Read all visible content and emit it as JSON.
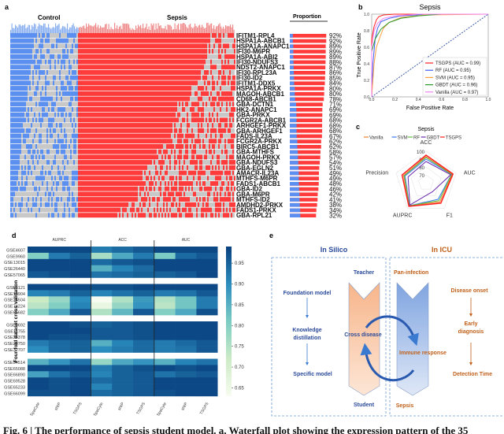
{
  "panel_labels": {
    "a": "a",
    "b": "b",
    "c": "c",
    "d": "d",
    "e": "e"
  },
  "panel_a": {
    "group_labels": {
      "control": "Control",
      "sepsis": "Sepsis"
    },
    "proportion_header": "Proportion",
    "colors": {
      "control": "#5b8ff0",
      "sepsis": "#ff3b3b",
      "absent": "#c8c8c8"
    },
    "genes": [
      "IFITM1-RPL4",
      "HSPA1A-ABCB1",
      "HSPA1A-ANAPC1",
      "IFI30-M6PR",
      "HSPA1A-ABI2",
      "IFI30-NDUFS3",
      "NDST2-ANAPC1",
      "IFI30-RPL23A",
      "IFI30-ID2",
      "IFITM1-DDX5",
      "HSPA1A-PRKX",
      "MAGOH-ABCB1",
      "CD68-ABCB1",
      "GBA-DCTN1",
      "HK2-ANAPC1",
      "GBA-PRKX",
      "FCGR2A-ABCB1",
      "ARHGEF1-PRKX",
      "GBA-ARHGEF1",
      "FADS-IL23A",
      "FCGR2A-PRKX",
      "BIRC5-ABCB1",
      "GBA-MTHFS",
      "MAGOH-PRKX",
      "GBA-NDUFS3",
      "GBA-EGLN2",
      "AMACR-IL23A",
      "MTHFS-M6PR",
      "FADS1-ABCB1",
      "GBA-ID2",
      "GBA-M6PR",
      "MTHFS-ID2",
      "AMDHD2-PRKX",
      "FADS1-PRKX",
      "GBA-RPL21"
    ],
    "proportions": [
      92,
      92,
      89,
      89,
      89,
      88,
      87,
      86,
      85,
      84,
      80,
      80,
      78,
      71,
      69,
      69,
      68,
      68,
      68,
      67,
      62,
      62,
      58,
      57,
      54,
      51,
      49,
      49,
      48,
      46,
      42,
      41,
      38,
      34,
      32
    ]
  },
  "chart_data": [
    {
      "panel": "b",
      "type": "line",
      "title": "Sepsis",
      "xlabel": "False Positive Rate",
      "ylabel": "True Positive Rate",
      "xlim": [
        0,
        1
      ],
      "ylim": [
        0,
        1
      ],
      "xticks": [
        "0.0",
        "0.2",
        "0.4",
        "0.6",
        "0.8",
        "1.0"
      ],
      "yticks": [
        "0.0",
        "0.2",
        "0.4",
        "0.6",
        "0.8",
        "1.0"
      ],
      "legend_position": "bottom-right",
      "series": [
        {
          "name": "TSGPS (AUC = 0.99)",
          "color": "#ff2020",
          "points": [
            [
              0,
              0
            ],
            [
              0,
              0.7
            ],
            [
              0.02,
              0.85
            ],
            [
              0.04,
              0.93
            ],
            [
              0.06,
              0.97
            ],
            [
              0.1,
              0.99
            ],
            [
              0.2,
              1
            ],
            [
              1,
              1
            ]
          ]
        },
        {
          "name": "RF (AUC = 0.95)",
          "color": "#3a5cf0",
          "points": [
            [
              0,
              0
            ],
            [
              0.01,
              0.4
            ],
            [
              0.03,
              0.7
            ],
            [
              0.05,
              0.83
            ],
            [
              0.08,
              0.91
            ],
            [
              0.15,
              0.95
            ],
            [
              0.25,
              0.98
            ],
            [
              0.5,
              1
            ],
            [
              1,
              1
            ]
          ]
        },
        {
          "name": "SVM (AUC = 0.95)",
          "color": "#ffa040",
          "points": [
            [
              0,
              0
            ],
            [
              0.02,
              0.4
            ],
            [
              0.04,
              0.6
            ],
            [
              0.07,
              0.72
            ],
            [
              0.1,
              0.83
            ],
            [
              0.15,
              0.9
            ],
            [
              0.25,
              0.96
            ],
            [
              0.45,
              0.99
            ],
            [
              1,
              1
            ]
          ]
        },
        {
          "name": "GBDT (AUC = 0.96)",
          "color": "#2a9a2a",
          "points": [
            [
              0,
              0
            ],
            [
              0,
              0.55
            ],
            [
              0.03,
              0.7
            ],
            [
              0.08,
              0.82
            ],
            [
              0.15,
              0.9
            ],
            [
              0.25,
              0.95
            ],
            [
              0.4,
              0.98
            ],
            [
              0.6,
              1
            ],
            [
              1,
              1
            ]
          ]
        },
        {
          "name": "Vanilla (AUC = 0.97)",
          "color": "#f080f0",
          "points": [
            [
              0,
              0
            ],
            [
              0,
              0.6
            ],
            [
              0.02,
              0.8
            ],
            [
              0.05,
              0.89
            ],
            [
              0.1,
              0.95
            ],
            [
              0.2,
              0.98
            ],
            [
              0.4,
              1
            ],
            [
              1,
              1
            ]
          ]
        }
      ],
      "diagonal_color": "#2a4aa0"
    },
    {
      "panel": "c",
      "type": "radar",
      "title": "Sepsis",
      "axes": [
        "ACC",
        "AUC",
        "F1",
        "AUPRC",
        "Precision"
      ],
      "ring_labels": [
        "100",
        "90",
        "80",
        "70"
      ],
      "range": [
        60,
        100
      ],
      "legend_position": "top",
      "series": [
        {
          "name": "Vanilla",
          "color": "#f08030",
          "values": [
            93,
            95,
            90,
            96,
            90
          ]
        },
        {
          "name": "SVM",
          "color": "#3a7af0",
          "values": [
            90,
            94,
            86,
            96,
            88
          ]
        },
        {
          "name": "RF",
          "color": "#60c040",
          "values": [
            92,
            94,
            88,
            96,
            89
          ]
        },
        {
          "name": "GBDT",
          "color": "#6a2ab0",
          "values": [
            87,
            93,
            74,
            95,
            84
          ]
        },
        {
          "name": "TSGPS",
          "color": "#ff2020",
          "values": [
            95,
            96,
            92,
            97,
            92
          ]
        }
      ]
    },
    {
      "panel": "d",
      "type": "heatmap",
      "ylabel": "Four-fold dataset cross validation",
      "metric_groups": [
        "AUPRC",
        "ACC",
        "AUC"
      ],
      "columns": [
        "SpaCyte",
        "sNIP",
        "TSGPS",
        "SpaCyte",
        "sNIP",
        "TSGPS",
        "SpaCyte",
        "sNIP",
        "TSGPS"
      ],
      "colorbar_ticks": [
        "0.95",
        "0.90",
        "0.85",
        "0.80",
        "0.75",
        "0.70",
        "0.65"
      ],
      "range": [
        0.63,
        0.99
      ],
      "colormap": "GnBu",
      "row_groups": [
        {
          "rows": [
            "GSE4607",
            "GSE9960",
            "GSE13015",
            "GSE26440",
            "GSE57065"
          ],
          "values": [
            [
              0.98,
              0.98,
              0.98,
              0.92,
              0.94,
              0.96,
              0.98,
              0.98,
              0.98
            ],
            [
              0.8,
              0.92,
              0.95,
              0.76,
              0.86,
              0.92,
              0.81,
              0.94,
              0.96
            ],
            [
              0.98,
              0.98,
              0.98,
              0.94,
              0.96,
              0.97,
              0.98,
              0.98,
              0.98
            ],
            [
              0.98,
              0.98,
              0.98,
              0.85,
              0.91,
              0.94,
              0.98,
              0.98,
              0.98
            ],
            [
              0.96,
              0.97,
              0.98,
              0.93,
              0.94,
              0.95,
              0.95,
              0.96,
              0.98
            ]
          ]
        },
        {
          "rows": [
            "GSE8121",
            "GSE13904",
            "GSE25504",
            "GSE74224",
            "GSE65682"
          ],
          "values": [
            [
              0.98,
              0.98,
              0.98,
              0.97,
              0.97,
              0.98,
              0.98,
              0.98,
              0.98
            ],
            [
              0.91,
              0.92,
              0.95,
              0.91,
              0.93,
              0.95,
              0.92,
              0.93,
              0.96
            ],
            [
              0.72,
              0.78,
              0.9,
              0.63,
              0.75,
              0.88,
              0.75,
              0.82,
              0.92
            ],
            [
              0.74,
              0.8,
              0.91,
              0.66,
              0.78,
              0.89,
              0.74,
              0.82,
              0.92
            ],
            [
              0.8,
              0.86,
              0.96,
              0.75,
              0.84,
              0.96,
              0.8,
              0.86,
              0.97
            ]
          ]
        },
        {
          "rows": [
            "GSE9692",
            "GSE11755",
            "GSE26378",
            "GSE28750",
            "GSE32707"
          ],
          "values": [
            [
              0.98,
              0.98,
              0.97,
              0.95,
              0.96,
              0.97,
              0.98,
              0.98,
              0.98
            ],
            [
              0.98,
              0.98,
              0.98,
              0.96,
              0.96,
              0.97,
              0.98,
              0.98,
              0.98
            ],
            [
              0.98,
              0.97,
              0.97,
              0.96,
              0.96,
              0.97,
              0.98,
              0.98,
              0.98
            ],
            [
              0.92,
              0.94,
              0.95,
              0.85,
              0.91,
              0.94,
              0.92,
              0.94,
              0.96
            ],
            [
              0.9,
              0.94,
              0.95,
              0.9,
              0.92,
              0.94,
              0.92,
              0.93,
              0.96
            ]
          ]
        },
        {
          "rows": [
            "GSE54514",
            "GSE65088",
            "GSE66890",
            "GSE69528",
            "GSE65233",
            "GSE66099"
          ],
          "values": [
            [
              0.85,
              0.89,
              0.93,
              0.78,
              0.86,
              0.89,
              0.85,
              0.91,
              0.93
            ],
            [
              0.98,
              0.98,
              0.98,
              0.92,
              0.95,
              0.97,
              0.98,
              0.97,
              0.98
            ],
            [
              0.87,
              0.93,
              0.96,
              0.91,
              0.95,
              0.96,
              0.93,
              0.95,
              0.96
            ],
            [
              0.98,
              0.97,
              0.98,
              0.94,
              0.95,
              0.96,
              0.98,
              0.98,
              0.98
            ],
            [
              0.98,
              0.97,
              0.98,
              0.91,
              0.95,
              0.96,
              0.98,
              0.98,
              0.98
            ],
            [
              0.97,
              0.97,
              0.98,
              0.94,
              0.95,
              0.96,
              0.97,
              0.98,
              0.98
            ]
          ]
        }
      ]
    }
  ],
  "panel_e": {
    "left_title": "In Silico",
    "right_title": "In ICU",
    "teacher": "Teacher",
    "student": "Student",
    "foundation": "Foundation model",
    "knowledge": "Knowledge",
    "distillation": "distillation",
    "specific": "Specific model",
    "cross": "Cross disease",
    "pan": "Pan-infection",
    "sepsis": "Sepsis",
    "immune": "Immune response",
    "onset": "Disease onset",
    "early": "Early",
    "diagnosis": "diagnosis",
    "detection": "Detection Time",
    "colors": {
      "blue": "#2a4a9a",
      "orange": "#c0601a"
    }
  },
  "caption": "Fig. 6 | The performance of sepsis student model. a, Waterfall plot showing the expression pattern of the 35"
}
